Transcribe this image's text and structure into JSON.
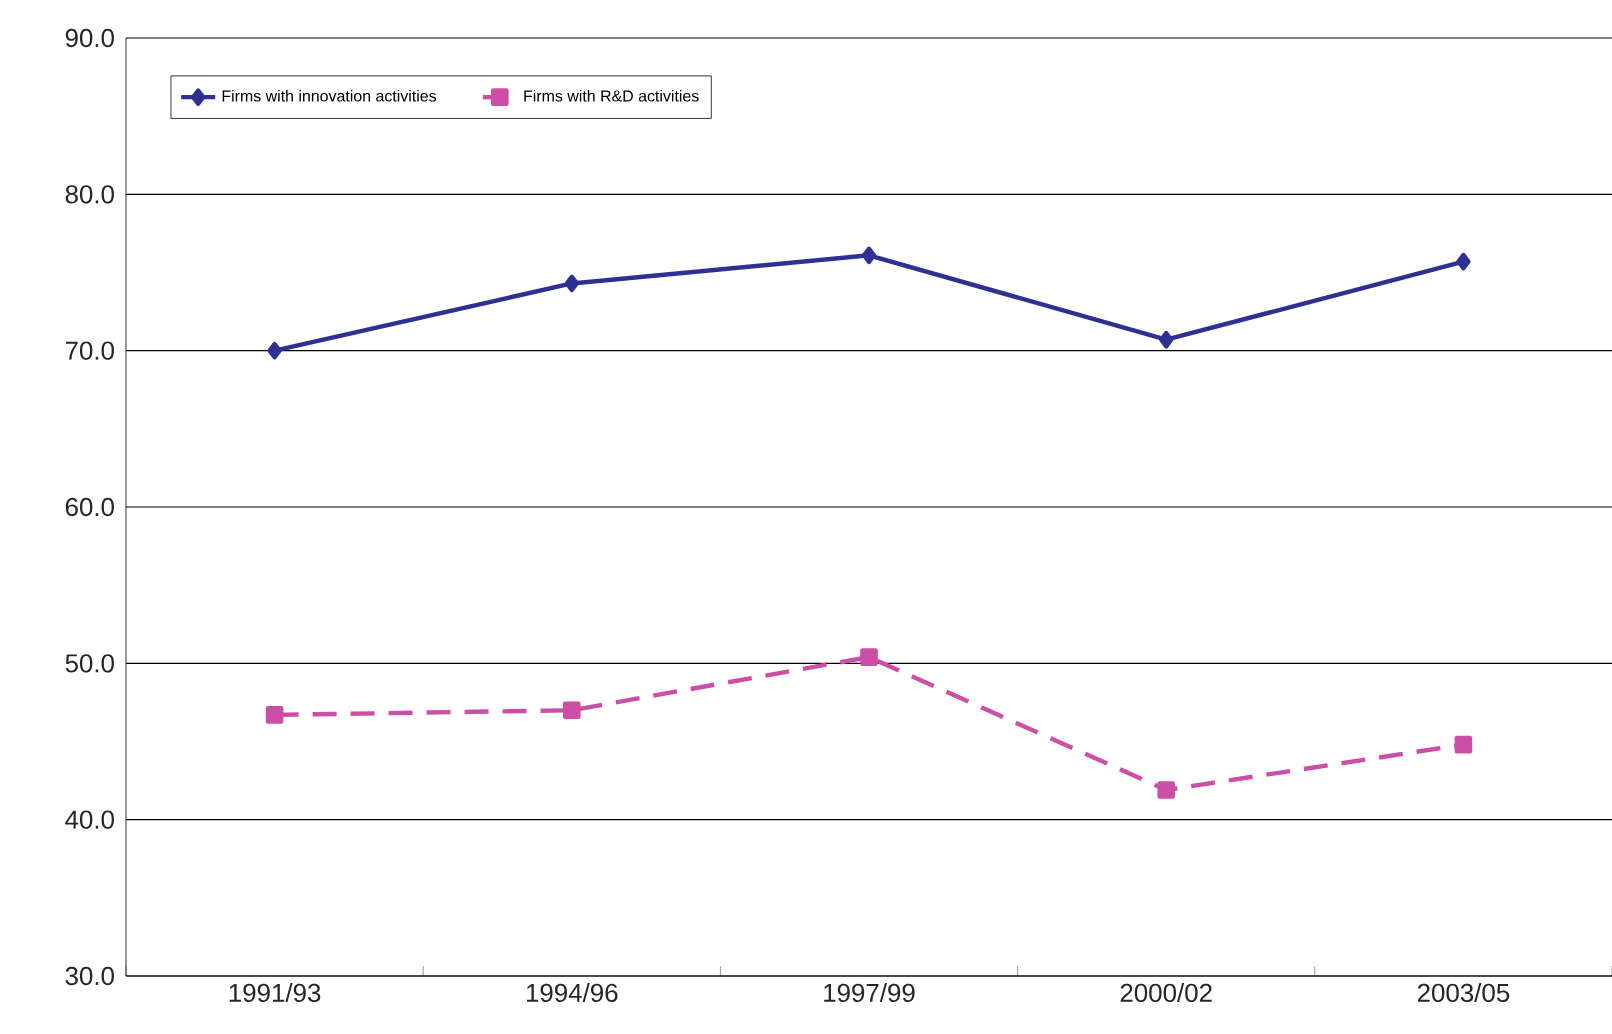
{
  "chart_data": {
    "type": "line",
    "categories": [
      "1991/93",
      "1994/96",
      "1997/99",
      "2000/02",
      "2003/05"
    ],
    "series": [
      {
        "name": "Firms with innovation activities",
        "color": "#2e3192",
        "marker": "diamond",
        "line_style": "solid",
        "values": [
          70.0,
          74.3,
          76.1,
          70.7,
          75.7
        ]
      },
      {
        "name": "Firms with R&D activities",
        "color": "#cc4fa6",
        "marker": "square",
        "line_style": "dashed",
        "values": [
          46.7,
          47.0,
          50.4,
          41.9,
          44.8
        ]
      }
    ],
    "ylim": [
      30,
      90
    ],
    "yticks": [
      {
        "value": 30,
        "label": "30.0"
      },
      {
        "value": 40,
        "label": "40.0"
      },
      {
        "value": 50,
        "label": "50.0"
      },
      {
        "value": 60,
        "label": "60.0"
      },
      {
        "value": 70,
        "label": "70.0"
      },
      {
        "value": 80,
        "label": "80.0"
      },
      {
        "value": 90,
        "label": "90.0"
      }
    ],
    "grid": "y",
    "legend": "top left"
  }
}
